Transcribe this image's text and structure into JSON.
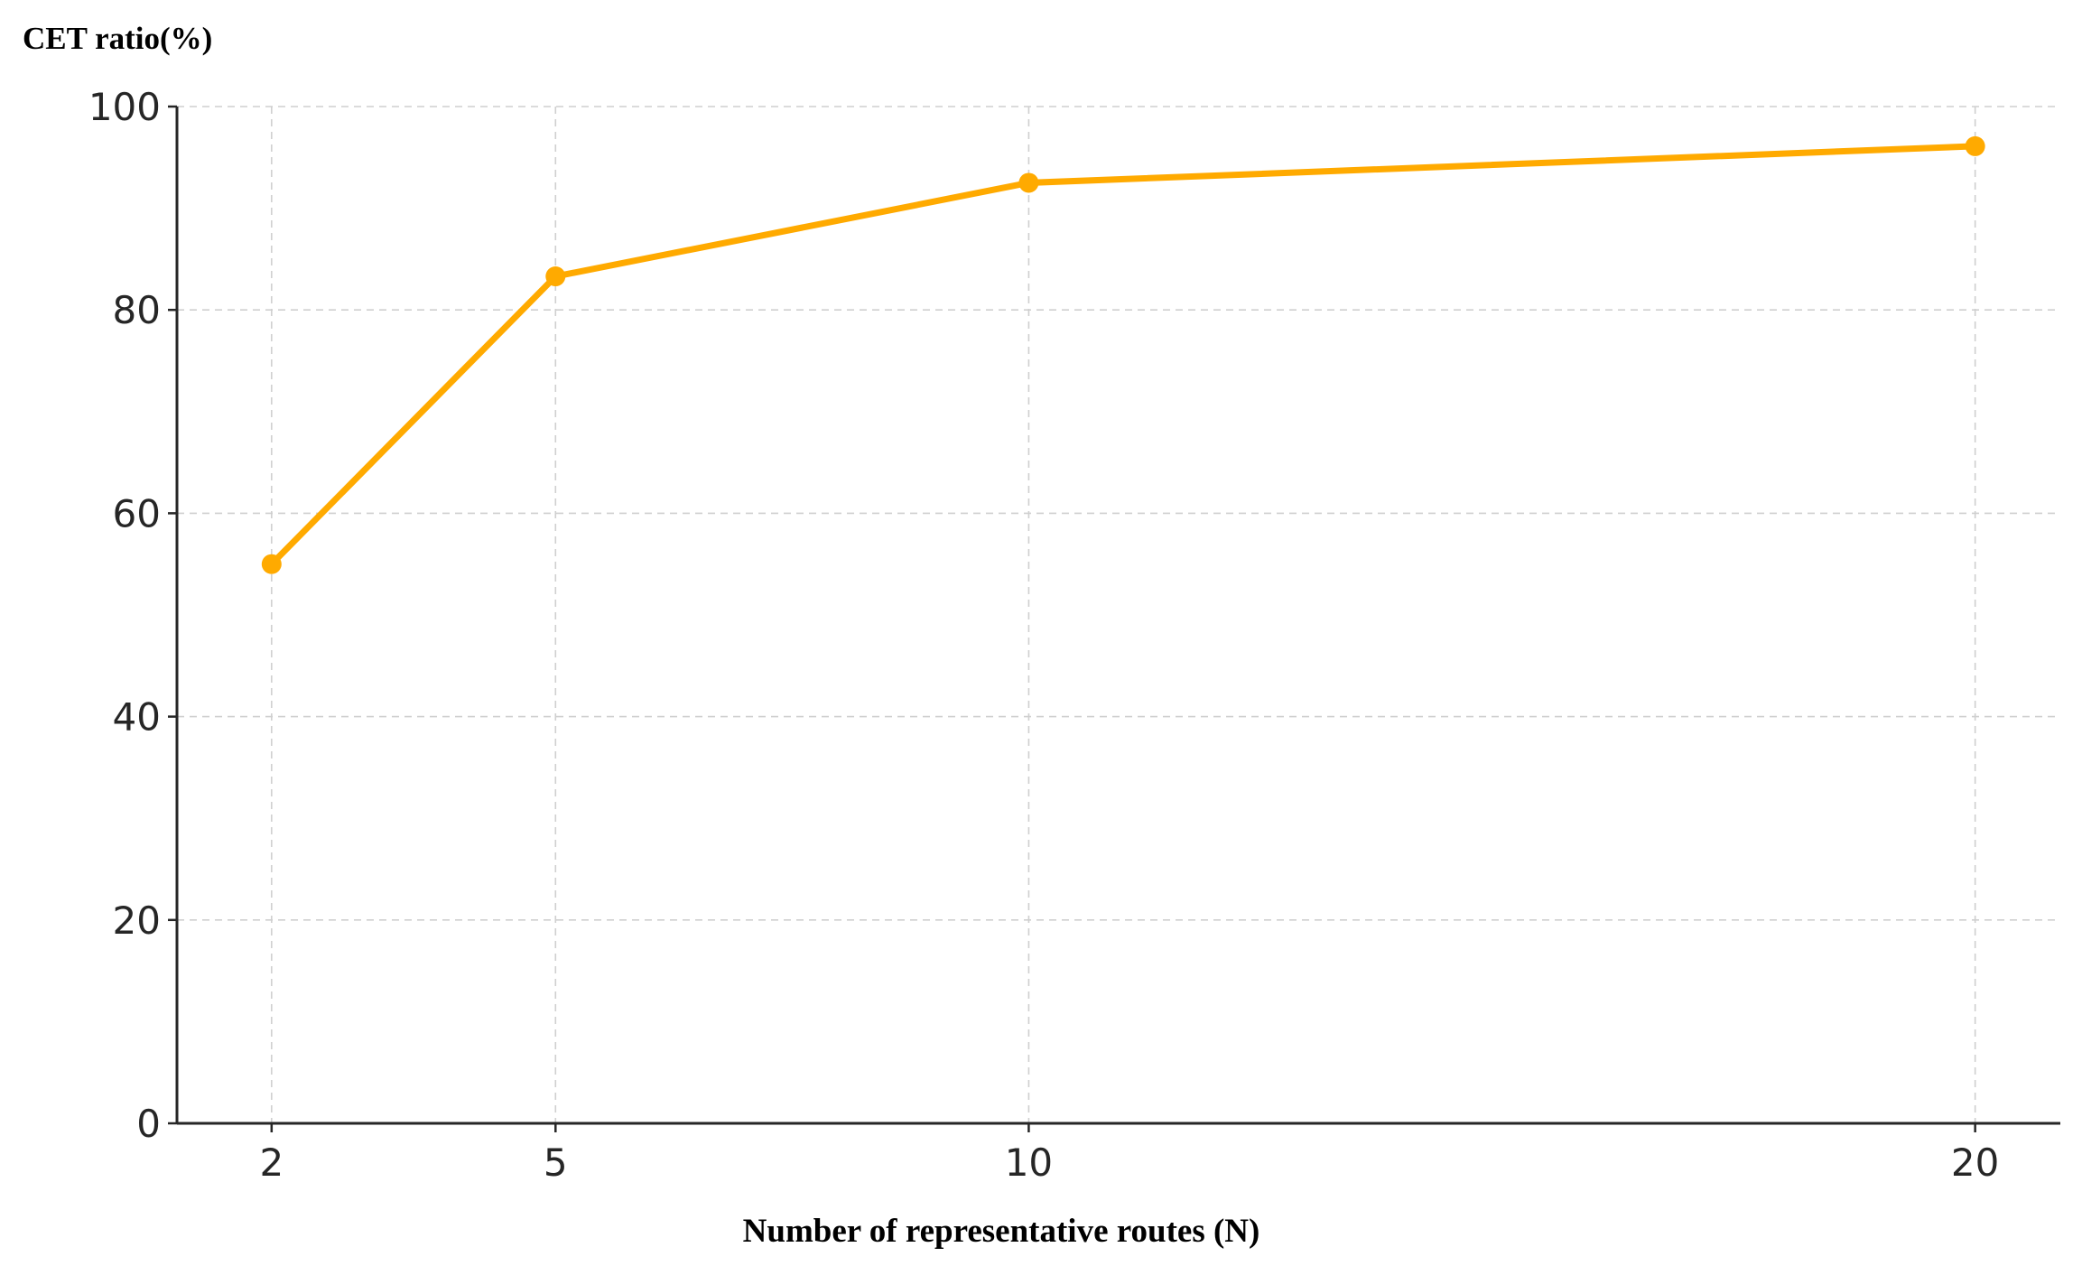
{
  "chart_data": {
    "type": "line",
    "ylabel": "CET ratio(%)",
    "xlabel": "Number of representative routes (N)",
    "x": [
      2,
      5,
      10,
      20
    ],
    "xticks": [
      "2",
      "5",
      "10",
      "20"
    ],
    "xlim": [
      1.0,
      20.9
    ],
    "ylim": [
      0,
      100
    ],
    "yticks": [
      "0",
      "20",
      "40",
      "60",
      "80",
      "100"
    ],
    "grid": true,
    "series": [
      {
        "values": [
          55,
          83.3,
          92.5,
          96.1
        ],
        "color": "#FFAA00"
      }
    ]
  }
}
